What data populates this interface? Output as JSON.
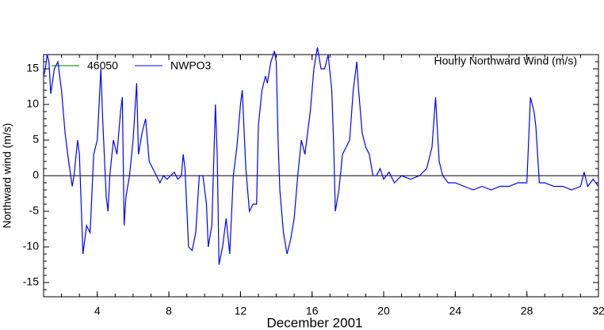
{
  "chart_data": {
    "type": "line",
    "title": "Hourly Northward Wind (m/s)",
    "x_label": "December 2001",
    "y_label": "Northward wind (m/s)",
    "xlim": [
      1,
      32
    ],
    "xticks": [
      4,
      8,
      12,
      16,
      20,
      24,
      28,
      32
    ],
    "ylim": [
      -17,
      17
    ],
    "yticks": [
      -15,
      -10,
      -5,
      0,
      5,
      10,
      15
    ],
    "hlines": [
      0
    ],
    "series": [
      {
        "name": "46050",
        "color": "#008000",
        "x": [],
        "values": []
      },
      {
        "name": "NWPO3",
        "color": "#0000ff",
        "x": [
          1.0,
          1.1,
          1.2,
          1.3,
          1.4,
          1.6,
          1.8,
          2.0,
          2.2,
          2.4,
          2.6,
          2.7,
          2.9,
          3.0,
          3.1,
          3.2,
          3.4,
          3.6,
          3.8,
          4.0,
          4.2,
          4.3,
          4.5,
          4.6,
          4.7,
          4.9,
          5.1,
          5.3,
          5.4,
          5.5,
          5.6,
          5.8,
          6.0,
          6.2,
          6.3,
          6.5,
          6.7,
          6.9,
          7.1,
          7.3,
          7.5,
          7.7,
          7.9,
          8.1,
          8.3,
          8.5,
          8.7,
          8.8,
          8.9,
          9.1,
          9.3,
          9.5,
          9.7,
          9.9,
          10.1,
          10.2,
          10.4,
          10.6,
          10.7,
          10.8,
          11.0,
          11.2,
          11.4,
          11.6,
          11.8,
          12.0,
          12.1,
          12.3,
          12.5,
          12.7,
          12.9,
          13.0,
          13.2,
          13.4,
          13.5,
          13.7,
          13.9,
          14.0,
          14.1,
          14.2,
          14.4,
          14.6,
          14.8,
          15.0,
          15.2,
          15.4,
          15.6,
          15.9,
          16.1,
          16.3,
          16.5,
          16.7,
          16.9,
          17.1,
          17.2,
          17.3,
          17.5,
          17.7,
          17.9,
          18.1,
          18.3,
          18.5,
          18.6,
          18.8,
          19.0,
          19.2,
          19.4,
          19.6,
          19.8,
          20.0,
          20.3,
          20.6,
          21.0,
          21.5,
          22.0,
          22.4,
          22.7,
          22.9,
          23.1,
          23.3,
          23.6,
          24.0,
          24.5,
          25.0,
          25.5,
          26.0,
          26.5,
          27.0,
          27.5,
          28.0,
          28.2,
          28.4,
          28.5,
          28.7,
          29.0,
          29.5,
          30.0,
          30.5,
          31.0,
          31.2,
          31.4,
          31.7,
          32.0
        ],
        "values": [
          14,
          15,
          17,
          16,
          11.5,
          15,
          16,
          12,
          6,
          2,
          -1.5,
          0,
          5,
          3,
          -4,
          -11,
          -7,
          -8,
          3,
          5,
          15,
          8,
          -3,
          -5,
          0,
          5,
          3,
          9,
          11,
          -7,
          -3,
          0,
          5,
          13,
          3,
          6,
          8,
          2,
          1,
          0,
          -1,
          0,
          -0.5,
          0,
          0.5,
          -0.5,
          0,
          3,
          1,
          -10,
          -10.5,
          -8,
          0,
          0,
          -4,
          -10,
          -7,
          10,
          3,
          -12.5,
          -10,
          -6,
          -11,
          0,
          4,
          10,
          12,
          1,
          -5,
          -4,
          -4,
          7,
          12,
          14,
          13,
          16,
          17.5,
          16,
          5,
          -2,
          -8,
          -11,
          -9,
          -6,
          0,
          5,
          3,
          9,
          15,
          18,
          15,
          15,
          17,
          12,
          5,
          -5,
          -2,
          3,
          4,
          5,
          12,
          16,
          12,
          6,
          4,
          3,
          0,
          0,
          1,
          -0.5,
          0.5,
          -1,
          0,
          -0.5,
          0,
          1,
          4,
          11,
          2,
          0,
          -1,
          -1,
          -1.5,
          -2,
          -1.5,
          -2,
          -1.5,
          -1.5,
          -1,
          -1,
          11,
          9,
          7,
          -1,
          -1,
          -1.5,
          -1.5,
          -2,
          -1.5,
          0.5,
          -1.5,
          -0.5,
          -1.5
        ]
      }
    ]
  }
}
